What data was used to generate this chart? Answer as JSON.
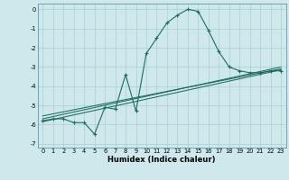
{
  "xlabel": "Humidex (Indice chaleur)",
  "bg_color": "#cfe8ec",
  "line_color": "#1e6b5e",
  "grid_color": "#a8cfd4",
  "xlim": [
    -0.5,
    23.5
  ],
  "ylim": [
    -7.2,
    0.3
  ],
  "xticks": [
    0,
    1,
    2,
    3,
    4,
    5,
    6,
    7,
    8,
    9,
    10,
    11,
    12,
    13,
    14,
    15,
    16,
    17,
    18,
    19,
    20,
    21,
    22,
    23
  ],
  "yticks": [
    0,
    -1,
    -2,
    -3,
    -4,
    -5,
    -6,
    -7
  ],
  "series_x": [
    0,
    1,
    2,
    3,
    4,
    5,
    6,
    7,
    8,
    9,
    10,
    11,
    12,
    13,
    14,
    15,
    16,
    17,
    18,
    19,
    20,
    21,
    22,
    23
  ],
  "series_y": [
    -5.8,
    -5.7,
    -5.7,
    -5.9,
    -5.9,
    -6.5,
    -5.1,
    -5.2,
    -3.4,
    -5.3,
    -2.3,
    -1.5,
    -0.7,
    -0.3,
    0.0,
    -0.1,
    -1.1,
    -2.2,
    -3.0,
    -3.2,
    -3.3,
    -3.3,
    -3.2,
    -3.2
  ],
  "linear_fits": [
    [
      0,
      -5.85,
      23,
      -3.15
    ],
    [
      0,
      -5.7,
      23,
      -3.0
    ],
    [
      0,
      -5.55,
      23,
      -3.1
    ]
  ],
  "xlabel_fontsize": 6.0,
  "tick_fontsize": 4.8
}
